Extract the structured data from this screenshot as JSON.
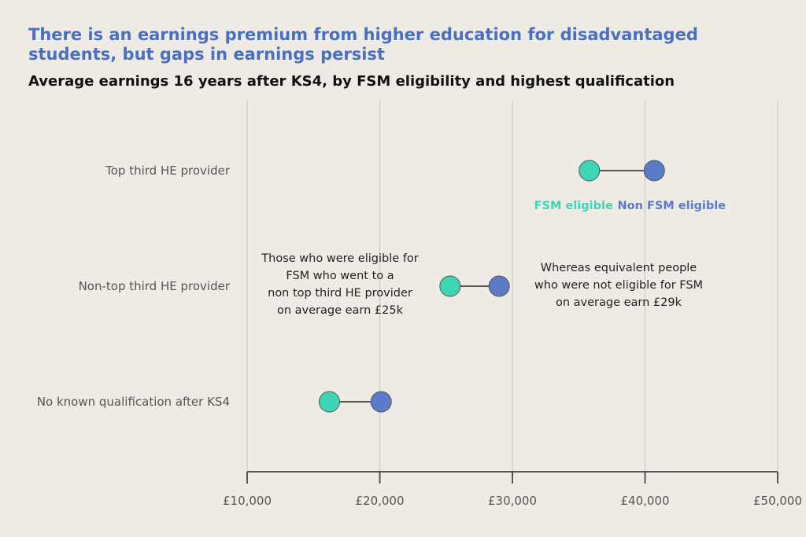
{
  "header": {
    "title": "There is an earnings premium from higher education for disadvantaged students, but gaps in earnings persist",
    "subtitle": "Average earnings 16 years after KS4, by FSM eligibility and highest qualification"
  },
  "colors": {
    "fsm": "#3dd6b5",
    "non_fsm": "#5b7bc9",
    "connector": "#555555",
    "grid": "#cfcbc4",
    "axis": "#555555"
  },
  "chart_data": {
    "type": "dumbbell",
    "xlim": [
      10000,
      50000
    ],
    "x_ticks": [
      {
        "value": 10000,
        "label": "£10,000"
      },
      {
        "value": 20000,
        "label": "£20,000"
      },
      {
        "value": 30000,
        "label": "£30,000"
      },
      {
        "value": 40000,
        "label": "£40,000"
      },
      {
        "value": 50000,
        "label": "£50,000"
      }
    ],
    "grid": true,
    "categories": [
      "Top third HE provider",
      "Non-top third HE provider",
      "No known qualification after KS4"
    ],
    "series": [
      {
        "name": "FSM eligible",
        "values": [
          35800,
          25300,
          16200
        ]
      },
      {
        "name": "Non FSM eligible",
        "values": [
          40700,
          29000,
          20100
        ]
      }
    ],
    "annotations": [
      {
        "lines": [
          "Those who were eligible for",
          "FSM who went to a",
          "non top third HE provider",
          "on average earn £25k"
        ]
      },
      {
        "lines": [
          "Whereas equivalent people",
          "who were not eligible for FSM",
          "on average earn £29k"
        ]
      }
    ]
  }
}
